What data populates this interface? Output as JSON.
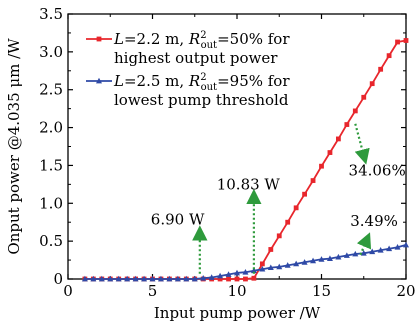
{
  "chart_data": {
    "type": "line",
    "xlabel": "Input pump power /W",
    "ylabel": "Onput power @4.035 μm /W",
    "xlim": [
      0,
      20
    ],
    "ylim": [
      0,
      3.5
    ],
    "x_ticks": [
      0,
      5,
      10,
      15,
      20
    ],
    "y_ticks": [
      0,
      0.5,
      1.0,
      1.5,
      2.0,
      2.5,
      3.0,
      3.5
    ],
    "x_tick_labels": [
      "0",
      "5",
      "10",
      "15",
      "20"
    ],
    "y_tick_labels": [
      "0",
      "0.5",
      "1.0",
      "1.5",
      "2.0",
      "2.5",
      "3.0",
      "3.5"
    ],
    "grid": false,
    "legend_position": "top-left",
    "legend": [
      {
        "series": 0,
        "line1_plain": "L=2.2 m, R",
        "sup": "2",
        "sub": "out",
        "line1_rest": "=50% for",
        "line2": "highest output power"
      },
      {
        "series": 1,
        "line1_plain": "L=2.5 m, R",
        "sup": "2",
        "sub": "out",
        "line1_rest": "=95% for",
        "line2": "lowest pump threshold"
      }
    ],
    "series": [
      {
        "color": "#e8262c",
        "marker": "square",
        "x": [
          1.0,
          1.5,
          2.0,
          2.5,
          3.0,
          3.5,
          4.0,
          4.5,
          5.0,
          5.5,
          6.0,
          6.5,
          7.0,
          7.5,
          8.0,
          8.5,
          9.0,
          9.5,
          10.0,
          10.5,
          11.0,
          11.5,
          12.0,
          12.5,
          13.0,
          13.5,
          14.0,
          14.5,
          15.0,
          15.5,
          16.0,
          16.5,
          17.0,
          17.5,
          18.0,
          18.5,
          19.0,
          19.5,
          20.0
        ],
        "y": [
          0,
          0,
          0,
          0,
          0,
          0,
          0,
          0,
          0,
          0,
          0,
          0,
          0,
          0,
          0,
          0,
          0,
          0,
          0,
          0,
          0.01,
          0.2,
          0.39,
          0.57,
          0.75,
          0.94,
          1.12,
          1.3,
          1.49,
          1.67,
          1.85,
          2.04,
          2.22,
          2.4,
          2.58,
          2.77,
          2.95,
          3.13,
          3.15
        ]
      },
      {
        "color": "#2e49a6",
        "marker": "triangle",
        "x": [
          1.0,
          1.5,
          2.0,
          2.5,
          3.0,
          3.5,
          4.0,
          4.5,
          5.0,
          5.5,
          6.0,
          6.5,
          7.0,
          7.5,
          8.0,
          8.5,
          9.0,
          9.5,
          10.0,
          10.5,
          11.0,
          11.5,
          12.0,
          12.5,
          13.0,
          13.5,
          14.0,
          14.5,
          15.0,
          15.5,
          16.0,
          16.5,
          17.0,
          17.5,
          18.0,
          18.5,
          19.0,
          19.5,
          20.0
        ],
        "y": [
          0,
          0,
          0,
          0,
          0,
          0,
          0,
          0,
          0,
          0,
          0,
          0,
          0,
          0,
          0.01,
          0.02,
          0.04,
          0.06,
          0.08,
          0.09,
          0.11,
          0.13,
          0.15,
          0.16,
          0.18,
          0.2,
          0.22,
          0.24,
          0.26,
          0.27,
          0.29,
          0.31,
          0.33,
          0.34,
          0.36,
          0.38,
          0.4,
          0.42,
          0.45
        ]
      }
    ],
    "annotations": [
      {
        "text": "6.90 W",
        "color": "#2e9a3c",
        "arrow_from": [
          7.8,
          0.07
        ],
        "arrow_to": [
          7.8,
          0.67
        ],
        "text_at": [
          4.9,
          0.72
        ]
      },
      {
        "text": "10.83 W",
        "color": "#2e9a3c",
        "arrow_from": [
          11.0,
          0.07
        ],
        "arrow_to": [
          11.0,
          1.15
        ],
        "text_at": [
          8.8,
          1.18
        ]
      },
      {
        "text": "34.06%",
        "color": "#2e9a3c",
        "arrow_from": [
          17.0,
          2.05
        ],
        "arrow_to": [
          17.6,
          1.55
        ],
        "text_at": [
          16.6,
          1.37
        ]
      },
      {
        "text": "3.49%",
        "color": "#2e9a3c",
        "arrow_from": [
          17.3,
          0.32
        ],
        "arrow_to": [
          17.8,
          0.58
        ],
        "text_at": [
          16.7,
          0.7
        ]
      }
    ]
  }
}
